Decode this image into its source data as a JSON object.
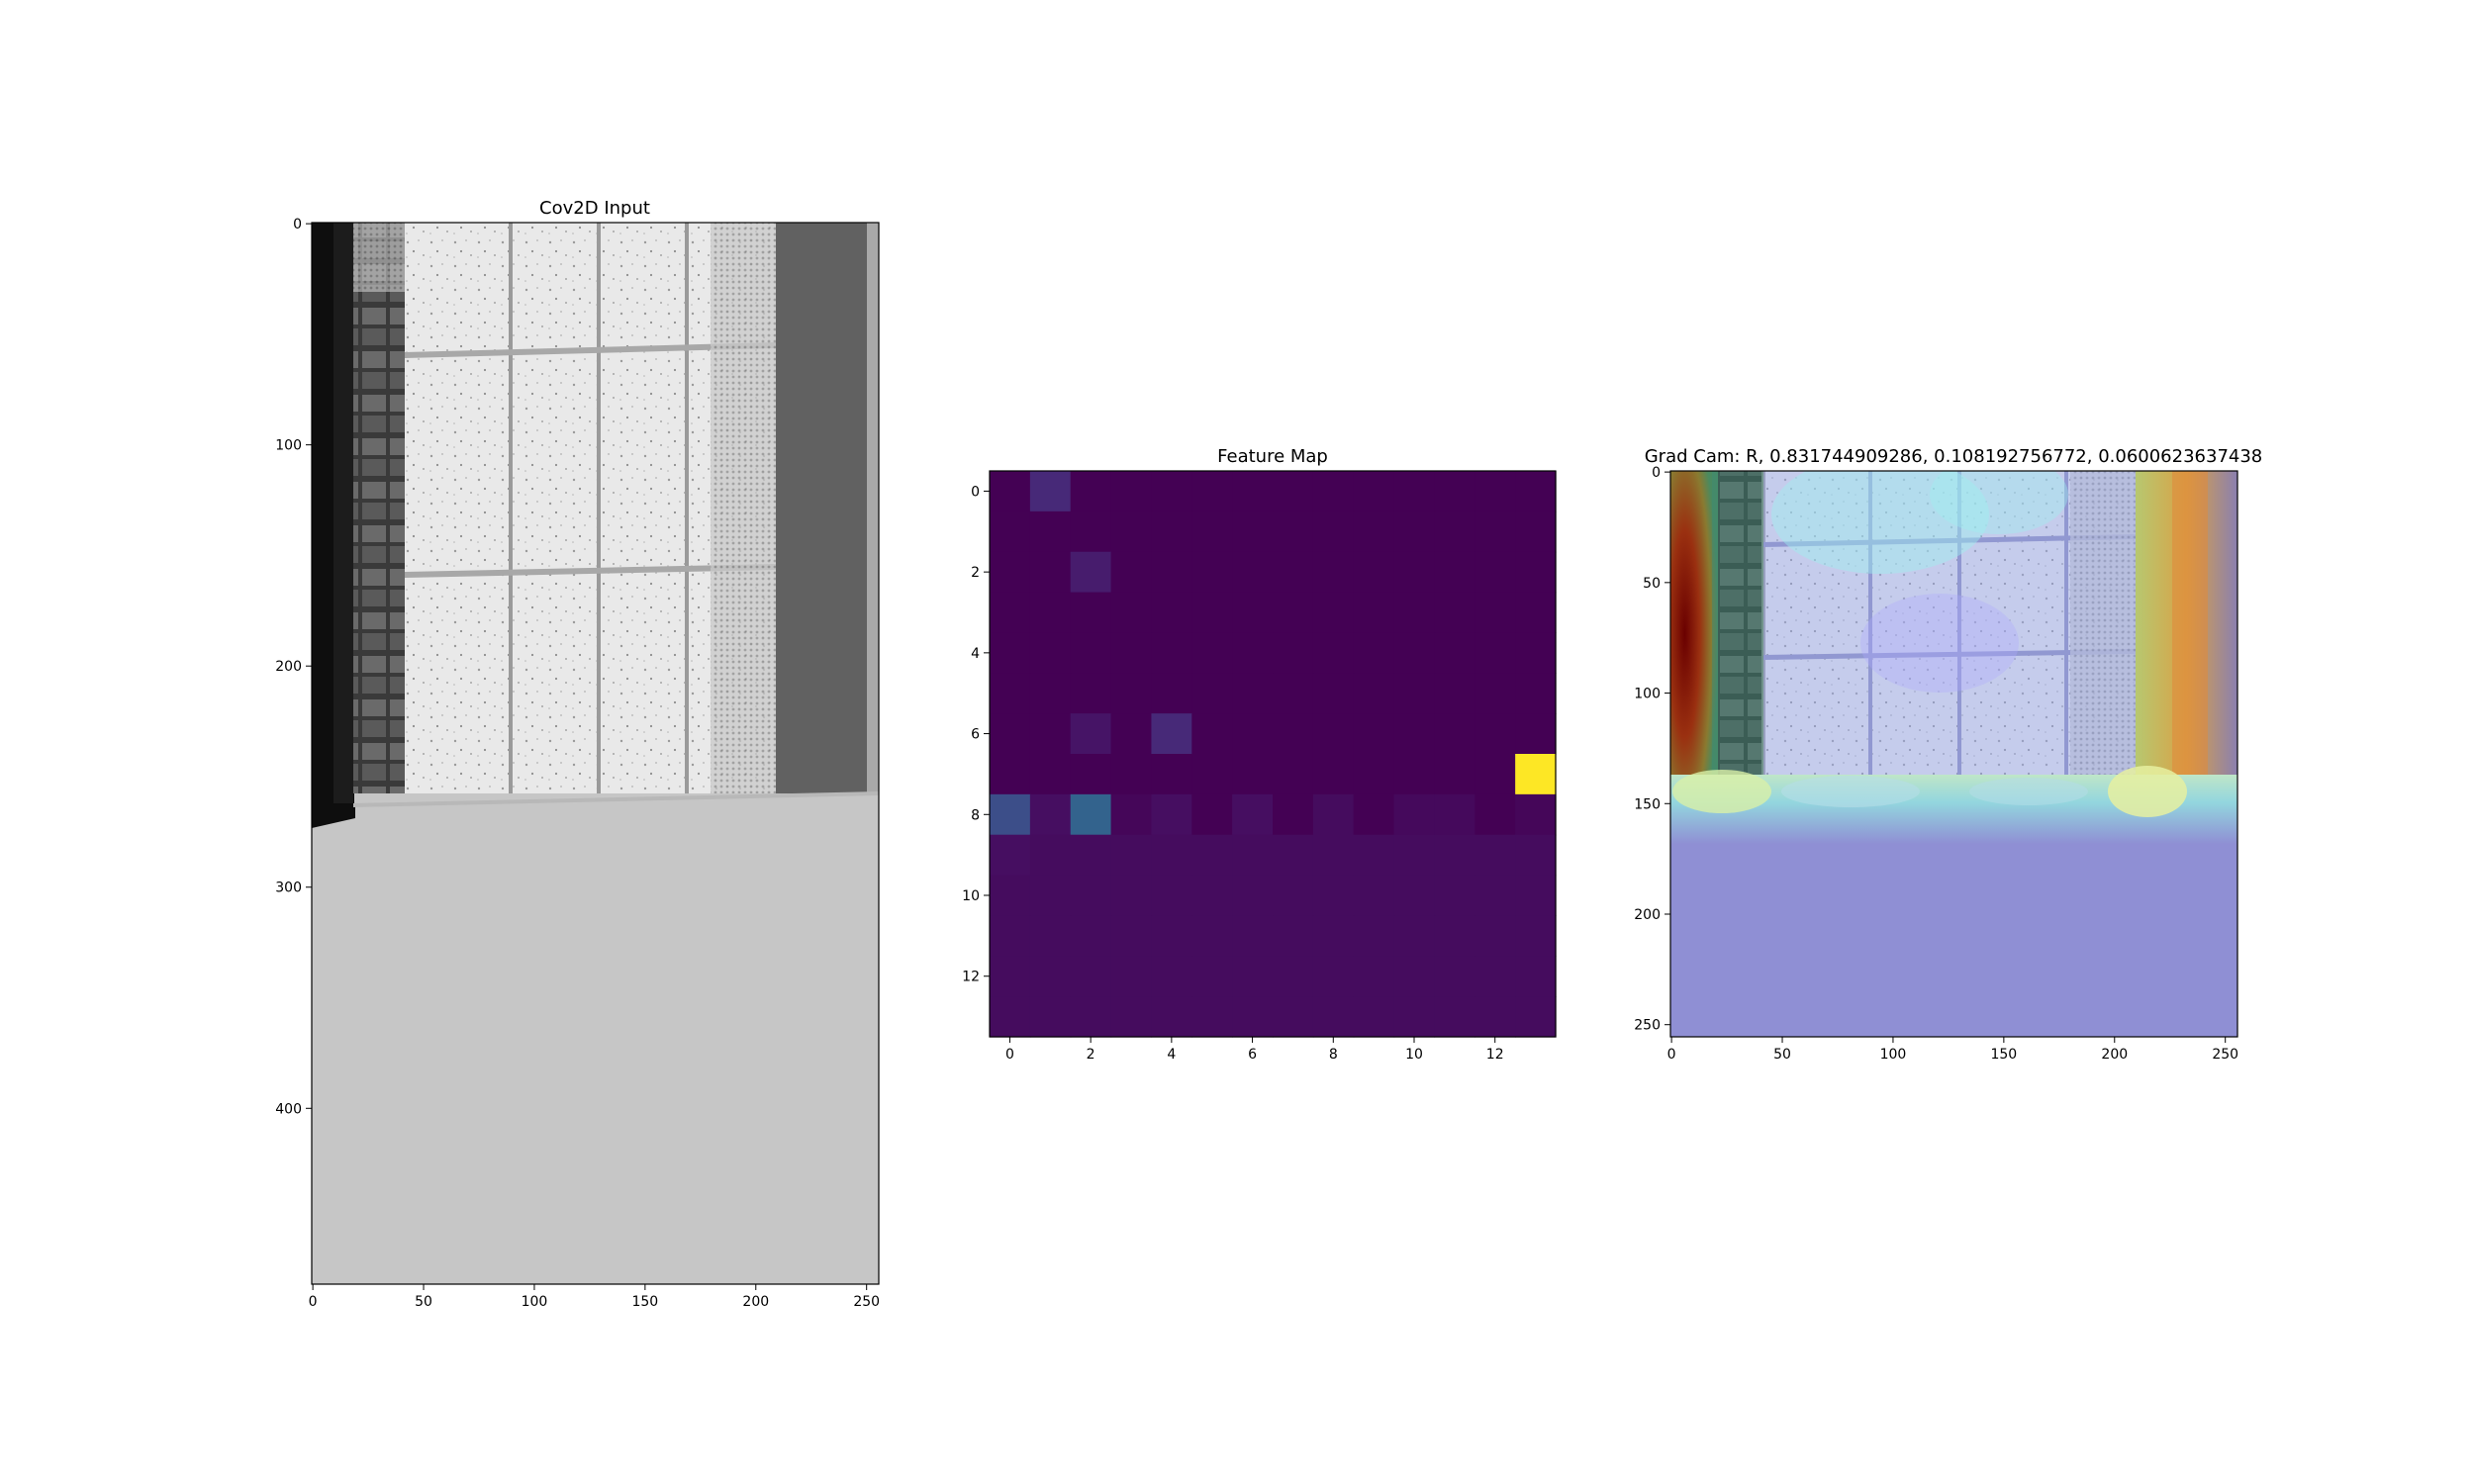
{
  "figure": {
    "background": "#ffffff"
  },
  "chart_data": [
    {
      "type": "image",
      "title": "Cov2D Input",
      "xlim": [
        -0.5,
        255.5
      ],
      "ylim": [
        479.5,
        -0.5
      ],
      "xticks": [
        0,
        50,
        100,
        150,
        200,
        250
      ],
      "yticks": [
        0,
        100,
        200,
        300,
        400
      ],
      "content": "grayscale camera frame: dark door jamb at left, brick column, frosted window panes with grid bars, grey wall at right; uniform light-grey region below row ~258",
      "floor_gray": "#c6c6c6"
    },
    {
      "type": "heatmap",
      "title": "Feature Map",
      "colormap": "viridis",
      "xlim": [
        -0.5,
        13.5
      ],
      "ylim": [
        13.5,
        -0.5
      ],
      "xticks": [
        0,
        2,
        4,
        6,
        8,
        10,
        12
      ],
      "yticks": [
        0,
        2,
        4,
        6,
        8,
        10,
        12
      ],
      "rows": 14,
      "cols": 14,
      "values": [
        [
          0.0,
          0.15,
          0.0,
          0.0,
          0.0,
          0.0,
          0.0,
          0.0,
          0.0,
          0.0,
          0.0,
          0.0,
          0.0,
          0.0
        ],
        [
          0.0,
          0.0,
          0.0,
          0.0,
          0.0,
          0.0,
          0.0,
          0.0,
          0.0,
          0.0,
          0.0,
          0.0,
          0.0,
          0.0
        ],
        [
          0.0,
          0.0,
          0.1,
          0.0,
          0.0,
          0.0,
          0.0,
          0.0,
          0.0,
          0.0,
          0.0,
          0.0,
          0.0,
          0.0
        ],
        [
          0.0,
          0.0,
          0.0,
          0.0,
          0.0,
          0.0,
          0.0,
          0.0,
          0.0,
          0.0,
          0.0,
          0.0,
          0.0,
          0.0
        ],
        [
          0.0,
          0.0,
          0.0,
          0.0,
          0.0,
          0.0,
          0.0,
          0.0,
          0.0,
          0.0,
          0.0,
          0.0,
          0.0,
          0.0
        ],
        [
          0.0,
          0.0,
          0.0,
          0.0,
          0.0,
          0.0,
          0.0,
          0.0,
          0.0,
          0.0,
          0.0,
          0.0,
          0.0,
          0.0
        ],
        [
          0.0,
          0.0,
          0.07,
          0.0,
          0.15,
          0.0,
          0.0,
          0.0,
          0.0,
          0.0,
          0.0,
          0.0,
          0.0,
          0.0
        ],
        [
          0.0,
          0.0,
          0.0,
          0.0,
          0.0,
          0.0,
          0.0,
          0.0,
          0.0,
          0.0,
          0.0,
          0.0,
          0.0,
          1.0
        ],
        [
          0.3,
          0.05,
          0.4,
          0.02,
          0.05,
          0.0,
          0.05,
          0.0,
          0.04,
          0.0,
          0.03,
          0.03,
          0.0,
          0.02
        ],
        [
          0.05,
          0.04,
          0.04,
          0.04,
          0.04,
          0.04,
          0.04,
          0.04,
          0.04,
          0.04,
          0.04,
          0.04,
          0.04,
          0.04
        ],
        [
          0.04,
          0.04,
          0.04,
          0.04,
          0.04,
          0.04,
          0.04,
          0.04,
          0.04,
          0.04,
          0.04,
          0.04,
          0.04,
          0.04
        ],
        [
          0.04,
          0.04,
          0.04,
          0.04,
          0.04,
          0.04,
          0.04,
          0.04,
          0.04,
          0.04,
          0.04,
          0.04,
          0.04,
          0.04
        ],
        [
          0.04,
          0.04,
          0.04,
          0.04,
          0.04,
          0.04,
          0.04,
          0.04,
          0.04,
          0.04,
          0.04,
          0.04,
          0.04,
          0.04
        ],
        [
          0.04,
          0.04,
          0.04,
          0.04,
          0.04,
          0.04,
          0.04,
          0.04,
          0.04,
          0.04,
          0.04,
          0.04,
          0.04,
          0.04
        ]
      ]
    },
    {
      "type": "image",
      "title": "Grad Cam: R, 0.831744909286, 0.108192756772, 0.0600623637438",
      "xlim": [
        -0.5,
        255.5
      ],
      "ylim": [
        255.5,
        -0.5
      ],
      "xticks": [
        0,
        50,
        100,
        150,
        200,
        250
      ],
      "yticks": [
        0,
        50,
        100,
        150,
        200,
        250
      ],
      "content": "input frame resized to 256x256 with jet-colormap heat overlay: dark red/brown hot region at left edge, orange/yellow band at right wall, cyan band along floor line, lavender elsewhere",
      "overlay_base": "#8f8fd4"
    }
  ]
}
